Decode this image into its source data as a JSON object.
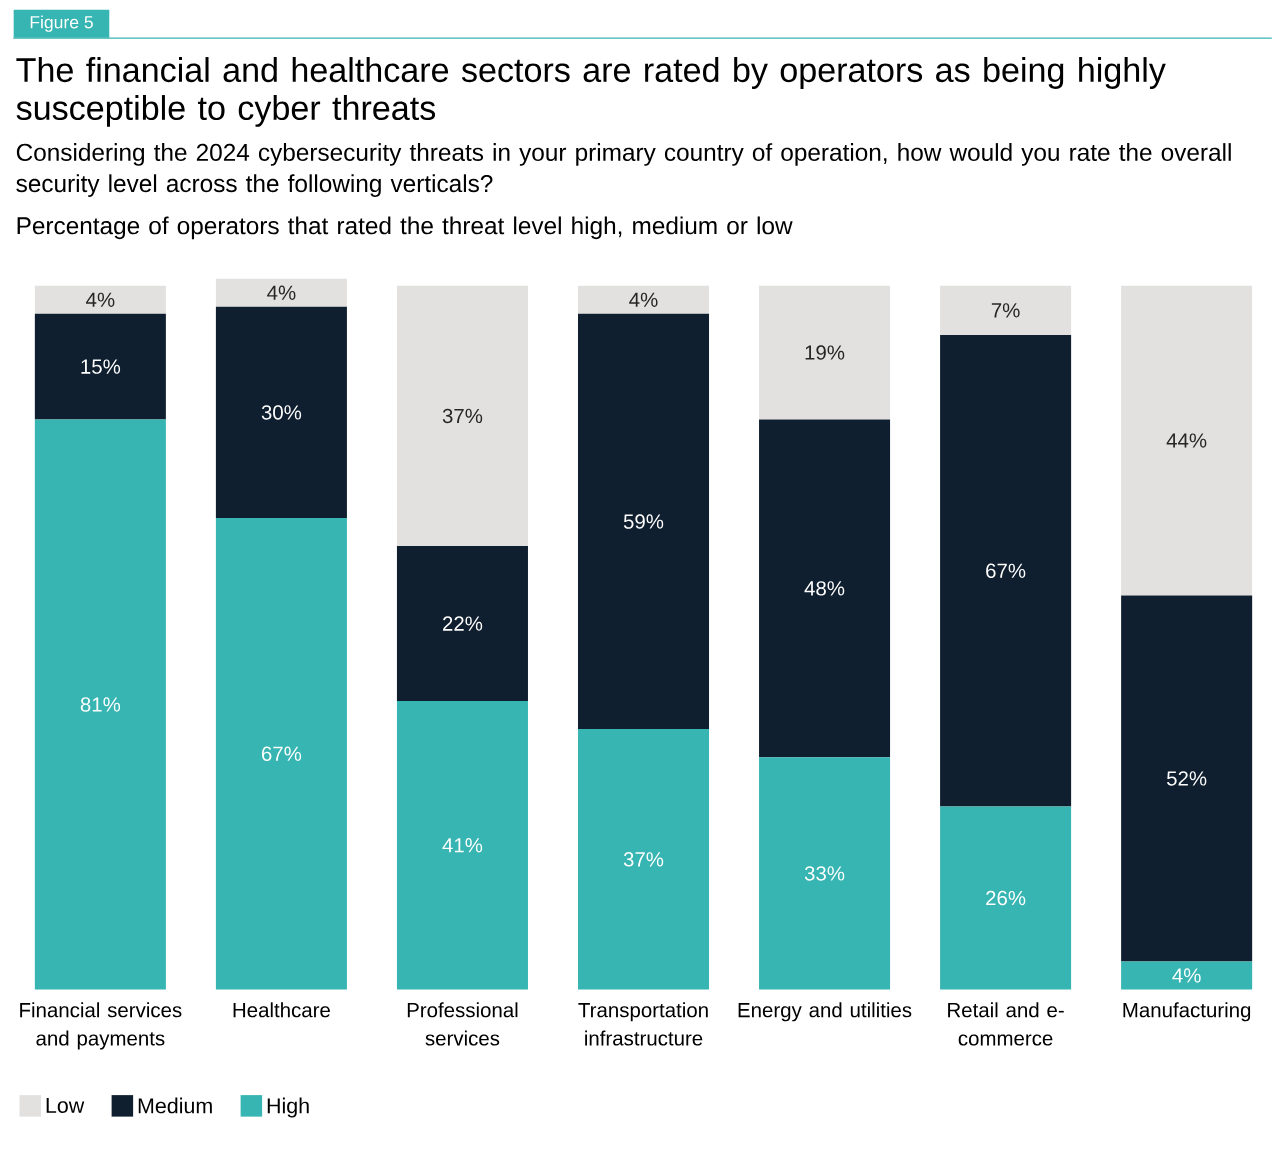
{
  "chart_data": {
    "type": "bar",
    "stacked": true,
    "title": "The financial and healthcare sectors are rated by operators as being highly susceptible to cyber threats",
    "subtitle": "Considering the 2024 cybersecurity threats in your primary country of operation, how would you rate the overall security level across the following verticals?",
    "annotations": [
      "Figure 5",
      "Percentage of operators that rated the threat level high, medium or low"
    ],
    "categories": [
      "Financial services and payments",
      "Healthcare",
      "Professional services",
      "Transportation infrastructure",
      "Energy and utilities",
      "Retail and e-commerce",
      "Manufacturing"
    ],
    "series": [
      {
        "name": "High",
        "color": "#36b5b2",
        "values": [
          81,
          67,
          41,
          37,
          33,
          26,
          4
        ],
        "value_labels": [
          "81%",
          "67%",
          "41%",
          "37%",
          "33%",
          "26%",
          "4%"
        ]
      },
      {
        "name": "Medium",
        "color": "#101f2f",
        "values": [
          15,
          30,
          22,
          59,
          48,
          67,
          52
        ],
        "value_labels": [
          "15%",
          "30%",
          "22%",
          "59%",
          "48%",
          "67%",
          "52%"
        ]
      },
      {
        "name": "Low",
        "color": "#e3e1df",
        "values": [
          4,
          4,
          37,
          4,
          19,
          7,
          44
        ],
        "value_labels": [
          "4%",
          "4%",
          "37%",
          "4%",
          "19%",
          "7%",
          "44%"
        ]
      }
    ],
    "legend": "bottom left"
  }
}
